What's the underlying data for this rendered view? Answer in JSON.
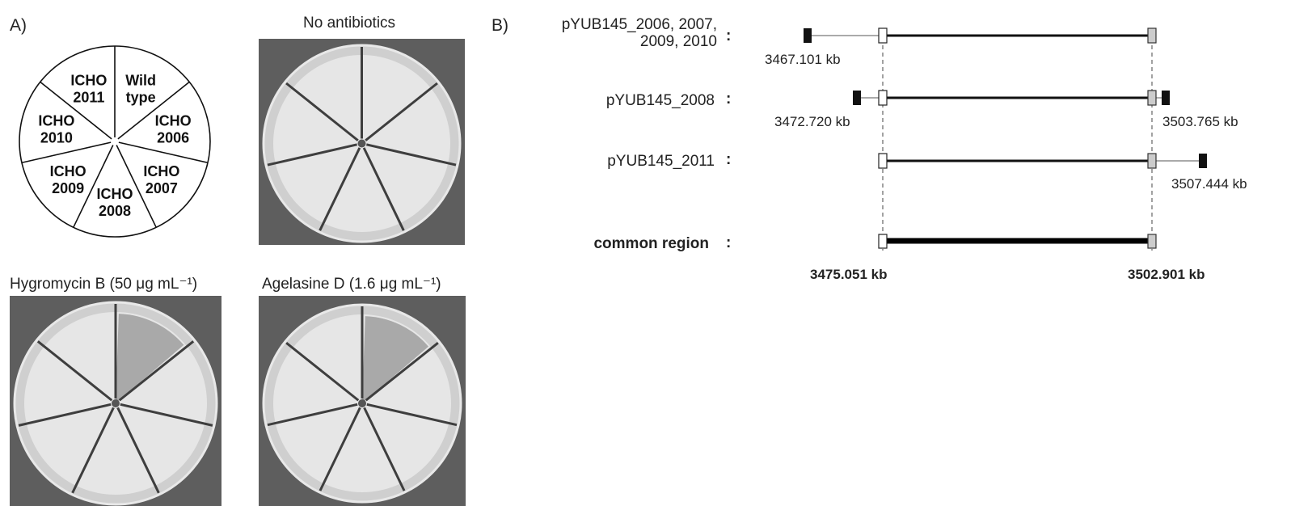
{
  "panel_a": {
    "label": "A)",
    "wheel_sectors": [
      {
        "line1": "Wild",
        "line2": "type"
      },
      {
        "line1": "ICHO",
        "line2": "2006"
      },
      {
        "line1": "ICHO",
        "line2": "2007"
      },
      {
        "line1": "ICHO",
        "line2": "2008"
      },
      {
        "line1": "ICHO",
        "line2": "2009"
      },
      {
        "line1": "ICHO",
        "line2": "2010"
      },
      {
        "line1": "ICHO",
        "line2": "2011"
      }
    ],
    "plates": {
      "no_antibiotics": "No antibiotics",
      "hygromycin": "Hygromycin B (50 μg mL⁻¹)",
      "agelasine": "Agelasine D (1.6 μg mL⁻¹)"
    }
  },
  "panel_b": {
    "label": "B)",
    "rows": [
      {
        "name_line1": "pYUB145_2006, 2007,",
        "name_line2": "2009, 2010",
        "colon": ":",
        "left_kb": "3467.101 kb",
        "right_kb": ""
      },
      {
        "name_line1": "pYUB145_2008",
        "name_line2": "",
        "colon": ":",
        "left_kb": "3472.720 kb",
        "right_kb": "3503.765 kb"
      },
      {
        "name_line1": "pYUB145_2011",
        "name_line2": "",
        "colon": ":",
        "left_kb": "",
        "right_kb": "3507.444 kb"
      }
    ],
    "common_region": {
      "label": "common region",
      "colon": ":"
    },
    "common_start": "3475.051 kb",
    "common_end": "3502.901 kb"
  }
}
